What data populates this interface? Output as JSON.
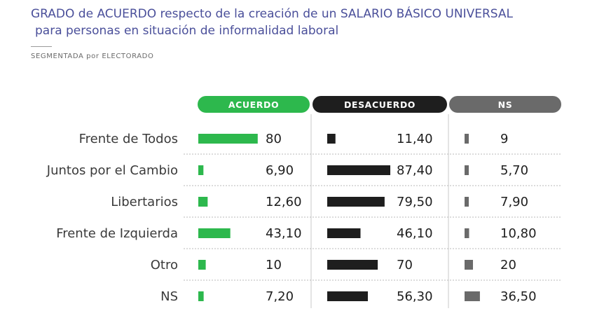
{
  "title_line1": "GRADO de ACUERDO respecto de la creación de un SALARIO BÁSICO UNIVERSAL",
  "title_line2": "para personas en situación de informalidad laboral",
  "subtitle": "SEGMENTADA por ELECTORADO",
  "colors": {
    "acuerdo": "#2db84d",
    "desacuerdo": "#1e1e1e",
    "ns": "#6a6a6a"
  },
  "chart_data": {
    "type": "bar",
    "title": "GRADO de ACUERDO respecto de la creación de un SALARIO BÁSICO UNIVERSAL para personas en situación de informalidad laboral",
    "subtitle": "SEGMENTADA por ELECTORADO",
    "categories": [
      "Frente de Todos",
      "Juntos por el Cambio",
      "Libertarios",
      "Frente de Izquierda",
      "Otro",
      "NS"
    ],
    "series": [
      {
        "name": "ACUERDO",
        "values": [
          80,
          6.9,
          12.6,
          43.1,
          10,
          7.2
        ],
        "labels": [
          "80",
          "6,90",
          "12,60",
          "43,10",
          "10",
          "7,20"
        ]
      },
      {
        "name": "DESACUERDO",
        "values": [
          11.4,
          87.4,
          79.5,
          46.1,
          70,
          56.3
        ],
        "labels": [
          "11,40",
          "87,40",
          "79,50",
          "46,10",
          "70",
          "56,30"
        ]
      },
      {
        "name": "NS",
        "values": [
          9,
          5.7,
          7.9,
          10.8,
          20,
          36.5
        ],
        "labels": [
          "9",
          "5,70",
          "7,90",
          "10,80",
          "20",
          "36,50"
        ]
      }
    ]
  }
}
